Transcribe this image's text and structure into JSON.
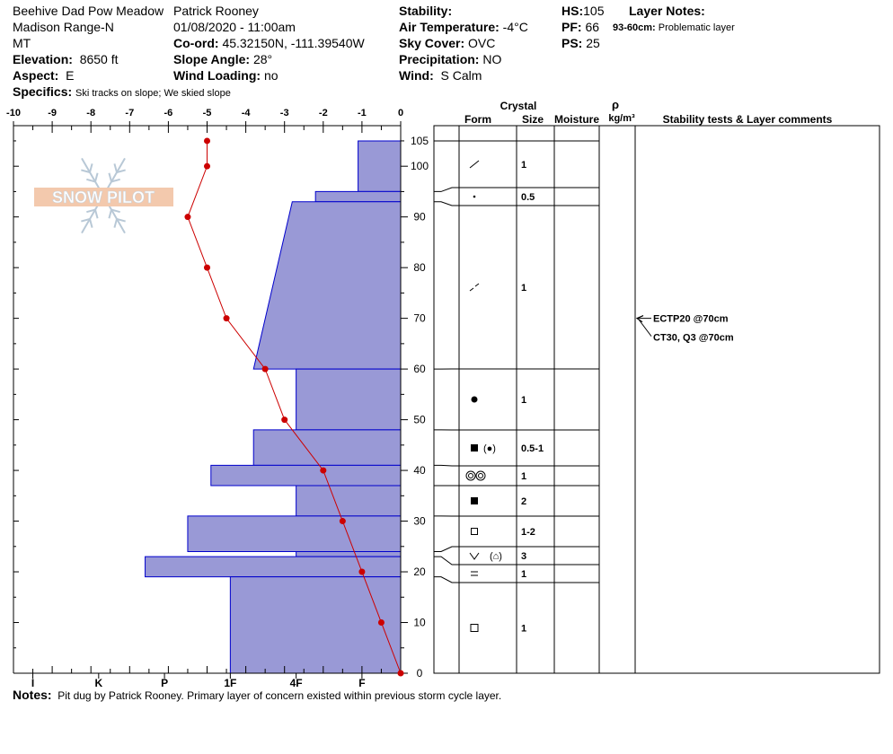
{
  "header": {
    "location": "Beehive Dad Pow Meadow",
    "range": "Madison Range-N",
    "state": "MT",
    "elevation_label": "Elevation:",
    "elevation": "8650 ft",
    "aspect_label": "Aspect:",
    "aspect": "E",
    "specifics_label": "Specifics:",
    "specifics": "Ski tracks on slope; We skied slope",
    "observer": "Patrick Rooney",
    "datetime": "01/08/2020 - 11:00am",
    "coord_label": "Co-ord:",
    "coord": "45.32150N, -111.39540W",
    "slope_label": "Slope Angle:",
    "slope": "28°",
    "wind_loading_label": "Wind Loading:",
    "wind_loading": "no",
    "stability_label": "Stability:",
    "air_temp_label": "Air Temperature:",
    "air_temp": "-4°C",
    "sky_label": "Sky Cover:",
    "sky": "OVC",
    "precip_label": "Precipitation:",
    "precip": "NO",
    "wind_label": "Wind:",
    "wind": "S Calm",
    "hs_label": "HS:",
    "hs": "105",
    "pf_label": "PF:",
    "pf": "66",
    "ps_label": "PS:",
    "ps": "25",
    "layer_notes_label": "Layer Notes:",
    "layer_note_range": "93-60cm:",
    "layer_note_text": "Problematic layer"
  },
  "notes": {
    "label": "Notes:",
    "text": "Pit dug by Patrick Rooney. Primary layer of concern existed within previous storm cycle layer."
  },
  "logo_text": "SNOW PILOT",
  "colors": {
    "hardness_fill": "#9999d6",
    "hardness_stroke": "#0000cc",
    "temp_line": "#cc0000"
  },
  "table_headers": {
    "crystal": "Crystal",
    "form": "Form",
    "size": "Size",
    "moisture": "Moisture",
    "rho": "ρ",
    "density_unit": "kg/m³",
    "stability": "Stability tests & Layer comments"
  },
  "chart_data": {
    "type": "snow-profile",
    "temp_axis": {
      "min": -10,
      "max": 0,
      "ticks": [
        "-10",
        "-9",
        "-8",
        "-7",
        "-6",
        "-5",
        "-4",
        "-3",
        "-2",
        "-1",
        "0"
      ]
    },
    "hardness_axis": {
      "labels": [
        "I",
        "K",
        "P",
        "1F",
        "4F",
        "F"
      ],
      "positions": [
        -9.5,
        -7.8,
        -6.1,
        -4.4,
        -2.7,
        -1
      ]
    },
    "depth_axis": {
      "min": 0,
      "max": 108,
      "ticks": [
        "0",
        "10",
        "20",
        "30",
        "40",
        "50",
        "60",
        "70",
        "80",
        "90",
        "100",
        "105"
      ]
    },
    "temperature_profile": [
      {
        "depth": 105,
        "temp": -5.0
      },
      {
        "depth": 100,
        "temp": -5.0
      },
      {
        "depth": 90,
        "temp": -5.5
      },
      {
        "depth": 80,
        "temp": -5.0
      },
      {
        "depth": 70,
        "temp": -4.5
      },
      {
        "depth": 60,
        "temp": -3.5
      },
      {
        "depth": 50,
        "temp": -3.0
      },
      {
        "depth": 40,
        "temp": -2.0
      },
      {
        "depth": 30,
        "temp": -1.5
      },
      {
        "depth": 20,
        "temp": -1.0
      },
      {
        "depth": 10,
        "temp": -0.5
      },
      {
        "depth": 0,
        "temp": 0.0
      }
    ],
    "layers": [
      {
        "top": 105,
        "bottom": 95,
        "hardness": -1.1,
        "form": "slash",
        "size": "1"
      },
      {
        "top": 95,
        "bottom": 93,
        "hardness": -2.2,
        "form": "dot",
        "size": "0.5"
      },
      {
        "top": 93,
        "bottom": 60,
        "hardness_top": -2.8,
        "hardness_bottom": -3.8,
        "form": "slash-broken",
        "size": "1"
      },
      {
        "top": 60,
        "bottom": 48,
        "hardness": -2.7,
        "form": "circle",
        "size": "1"
      },
      {
        "top": 48,
        "bottom": 41,
        "hardness": -3.8,
        "form": "rounding-circle",
        "size": "0.5-1"
      },
      {
        "top": 41,
        "bottom": 37,
        "hardness": -4.9,
        "form": "double-ring",
        "size": "1"
      },
      {
        "top": 37,
        "bottom": 31,
        "hardness": -2.7,
        "form": "rounding-square",
        "size": "2"
      },
      {
        "top": 31,
        "bottom": 24,
        "hardness": -5.5,
        "form": "hollow-square",
        "size": "1-2"
      },
      {
        "top": 24,
        "bottom": 23,
        "hardness": -2.7,
        "form": "cup-faceted",
        "size": "3"
      },
      {
        "top": 23,
        "bottom": 19,
        "hardness": -6.6,
        "form": "equals",
        "size": "1"
      },
      {
        "top": 19,
        "bottom": 0,
        "hardness": -4.4,
        "form": "square",
        "size": "1"
      }
    ],
    "stability_tests": [
      {
        "text": "ECTP20 @70cm",
        "depth": 70
      },
      {
        "text": "CT30, Q3 @70cm",
        "depth": 70
      }
    ]
  }
}
